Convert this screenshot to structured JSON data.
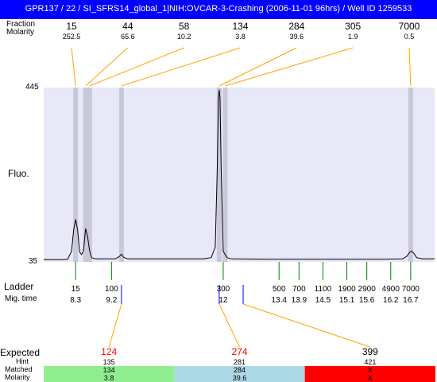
{
  "title": "GPR137 / 22 / SI_SFRS14_global_1|NIH:OVCAR-3-Crashing (2006-11-01 96hrs) / Well ID 1259533",
  "labels": {
    "fraction": "Fraction",
    "molarity": "Molarity",
    "fluo": "Fluo.",
    "ladder": "Ladder",
    "migtime": "Mig. time",
    "expected": "Expected",
    "hint": "Hint",
    "matched": "Matched",
    "molarity2": "Molarity",
    "ytop": "445",
    "ybottom": "35"
  },
  "colors": {
    "header": "#0000ff",
    "plot_bg": "#e8e8f8",
    "band": "#c8c8d8",
    "connector": "#ffa500",
    "ladder_tick": "#008000",
    "sample_tick": "#0000ff",
    "expected_red": "#ff0000",
    "block_green": "#90ee90",
    "block_blue": "#add8e6",
    "block_red": "#ff0000"
  },
  "chart_data": {
    "type": "line",
    "title": "",
    "ylabel": "Fluo.",
    "ylim": [
      35,
      445
    ],
    "xlim": [
      7.5,
      17.3
    ],
    "fractions": [
      {
        "size": "15",
        "molarity": "252.5",
        "peak_time": 8.3
      },
      {
        "size": "44",
        "molarity": "65.6",
        "peak_time": 8.55
      },
      {
        "size": "58",
        "molarity": "10.2",
        "peak_time": 8.65
      },
      {
        "size": "134",
        "molarity": "3.8",
        "peak_time": 9.45
      },
      {
        "size": "284",
        "molarity": "39.6",
        "peak_time": 11.9
      },
      {
        "size": "305",
        "molarity": "1.9",
        "peak_time": 12.05
      },
      {
        "size": "7000",
        "molarity": "0.5",
        "peak_time": 16.7
      }
    ],
    "ladder": [
      {
        "size": "15",
        "time": "8.3",
        "t": 8.3
      },
      {
        "size": "100",
        "time": "9.2",
        "t": 9.2
      },
      {
        "size": "300",
        "time": "12",
        "t": 12.0
      },
      {
        "size": "500",
        "time": "13.4",
        "t": 13.4
      },
      {
        "size": "700",
        "time": "13.9",
        "t": 13.9
      },
      {
        "size": "1100",
        "time": "14.5",
        "t": 14.5
      },
      {
        "size": "1900",
        "time": "15.1",
        "t": 15.1
      },
      {
        "size": "2900",
        "time": "15.6",
        "t": 15.6
      },
      {
        "size": "4900",
        "time": "16.2",
        "t": 16.2
      },
      {
        "size": "7000",
        "time": "16.7",
        "t": 16.7
      }
    ],
    "sample_marks": [
      9.45,
      11.9,
      12.5
    ],
    "trace": [
      [
        7.5,
        40
      ],
      [
        8.0,
        40
      ],
      [
        8.1,
        41
      ],
      [
        8.2,
        60
      ],
      [
        8.25,
        110
      ],
      [
        8.3,
        135
      ],
      [
        8.35,
        110
      ],
      [
        8.4,
        58
      ],
      [
        8.45,
        52
      ],
      [
        8.5,
        62
      ],
      [
        8.55,
        113
      ],
      [
        8.6,
        95
      ],
      [
        8.65,
        62
      ],
      [
        8.7,
        45
      ],
      [
        8.8,
        42
      ],
      [
        9.0,
        42
      ],
      [
        9.3,
        42
      ],
      [
        9.4,
        48
      ],
      [
        9.45,
        53
      ],
      [
        9.5,
        46
      ],
      [
        9.6,
        42
      ],
      [
        11.0,
        42
      ],
      [
        11.5,
        42
      ],
      [
        11.7,
        45
      ],
      [
        11.8,
        70
      ],
      [
        11.85,
        250
      ],
      [
        11.88,
        420
      ],
      [
        11.9,
        440
      ],
      [
        11.92,
        420
      ],
      [
        11.95,
        250
      ],
      [
        12.0,
        60
      ],
      [
        12.05,
        52
      ],
      [
        12.1,
        45
      ],
      [
        12.2,
        42
      ],
      [
        13.0,
        41
      ],
      [
        14.0,
        41
      ],
      [
        15.0,
        41
      ],
      [
        16.0,
        41
      ],
      [
        16.5,
        42
      ],
      [
        16.6,
        48
      ],
      [
        16.68,
        58
      ],
      [
        16.72,
        60
      ],
      [
        16.78,
        55
      ],
      [
        16.85,
        45
      ],
      [
        17.0,
        42
      ],
      [
        17.3,
        42
      ]
    ],
    "expected": [
      {
        "value": "124",
        "hint": "135",
        "matched": "134",
        "molarity": "3.8",
        "status": "green",
        "ref_time": 9.45
      },
      {
        "value": "274",
        "hint": "281",
        "matched": "284",
        "molarity": "39.6",
        "status": "blue",
        "ref_time": 11.9
      },
      {
        "value": "399",
        "hint": "421",
        "matched": "X",
        "molarity": "X",
        "status": "red",
        "ref_time": 12.5
      }
    ]
  }
}
